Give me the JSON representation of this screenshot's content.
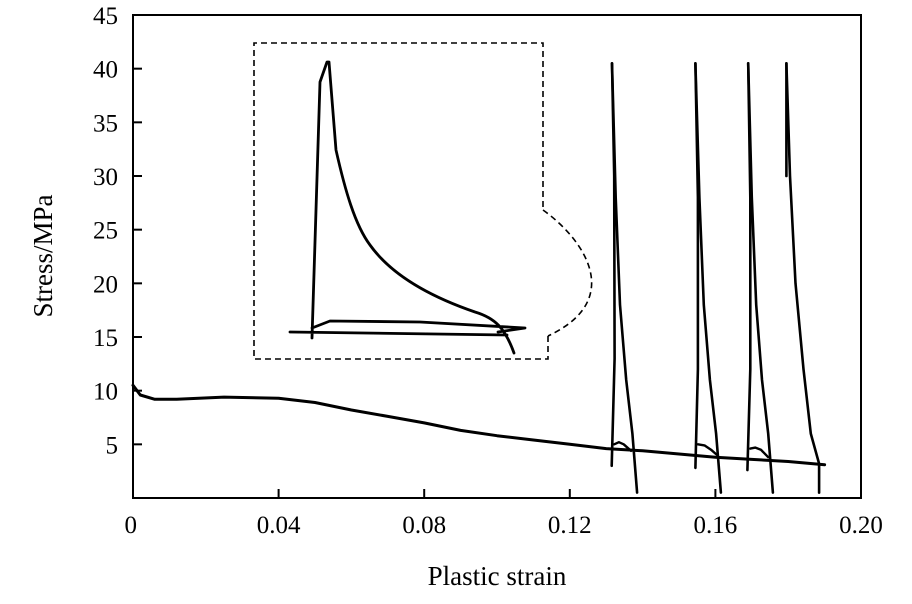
{
  "chart_data": {
    "type": "line",
    "title": "",
    "xlabel": "Plastic strain",
    "ylabel": "Stress/MPa",
    "xlim": [
      0,
      0.2
    ],
    "ylim": [
      0,
      45
    ],
    "grid": false,
    "legend": "none",
    "x_ticks": [
      {
        "value": 0,
        "label": "0"
      },
      {
        "value": 0.04,
        "label": "0.04"
      },
      {
        "value": 0.08,
        "label": "0.08"
      },
      {
        "value": 0.12,
        "label": "0.12"
      },
      {
        "value": 0.16,
        "label": "0.16"
      },
      {
        "value": 0.2,
        "label": "0.20"
      }
    ],
    "y_ticks": [
      {
        "value": 5,
        "label": "5"
      },
      {
        "value": 10,
        "label": "10"
      },
      {
        "value": 15,
        "label": "15"
      },
      {
        "value": 20,
        "label": "20"
      },
      {
        "value": 25,
        "label": "25"
      },
      {
        "value": 30,
        "label": "30"
      },
      {
        "value": 35,
        "label": "35"
      },
      {
        "value": 40,
        "label": "40"
      },
      {
        "value": 45,
        "label": "45"
      }
    ],
    "main_curve": {
      "x": [
        0,
        0.002,
        0.006,
        0.012,
        0.025,
        0.04,
        0.05,
        0.06,
        0.07,
        0.08,
        0.09,
        0.1,
        0.11,
        0.12,
        0.13,
        0.14,
        0.15,
        0.16,
        0.17,
        0.18,
        0.19
      ],
      "y": [
        10.5,
        9.6,
        9.2,
        9.2,
        9.4,
        9.3,
        8.9,
        8.2,
        7.6,
        7.0,
        6.3,
        5.8,
        5.4,
        5.0,
        4.6,
        4.4,
        4.1,
        3.8,
        3.6,
        3.4,
        3.1
      ]
    },
    "unload_cycles": [
      {
        "loading": {
          "x": [
            0.1315,
            0.1323,
            0.1322,
            0.1316
          ],
          "y": [
            3.0,
            13.0,
            30.0,
            40.5
          ]
        },
        "unloading": {
          "x": [
            0.1316,
            0.1326,
            0.1338,
            0.1355,
            0.1372,
            0.1385
          ],
          "y": [
            40.5,
            28.0,
            18.0,
            11.0,
            6.0,
            0.5
          ]
        },
        "loop": {
          "x": [
            0.1322,
            0.1335,
            0.1348,
            0.1368
          ],
          "y": [
            5.0,
            5.2,
            5.0,
            4.4
          ]
        }
      },
      {
        "loading": {
          "x": [
            0.1545,
            0.1552,
            0.1552,
            0.1545
          ],
          "y": [
            2.8,
            12.0,
            28.0,
            40.5
          ]
        },
        "unloading": {
          "x": [
            0.1545,
            0.1556,
            0.1568,
            0.1585,
            0.1602,
            0.1615
          ],
          "y": [
            40.5,
            28.0,
            18.0,
            11.0,
            6.0,
            0.5
          ]
        },
        "loop": {
          "x": [
            0.1552,
            0.157,
            0.1588,
            0.1605
          ],
          "y": [
            5.0,
            4.9,
            4.5,
            4.0
          ]
        }
      },
      {
        "loading": {
          "x": [
            0.1688,
            0.1696,
            0.1696,
            0.169
          ],
          "y": [
            2.6,
            12.0,
            28.0,
            40.5
          ]
        },
        "unloading": {
          "x": [
            0.169,
            0.17,
            0.1712,
            0.1728,
            0.1745,
            0.1758
          ],
          "y": [
            40.5,
            28.0,
            18.0,
            11.0,
            6.0,
            0.5
          ]
        },
        "loop": {
          "x": [
            0.1696,
            0.171,
            0.1725,
            0.1745
          ],
          "y": [
            4.6,
            4.7,
            4.5,
            3.8
          ]
        }
      },
      {
        "loading": {
          "x": [
            0.1795,
            0.1795
          ],
          "y": [
            30.0,
            40.5
          ]
        },
        "unloading": {
          "x": [
            0.1795,
            0.1805,
            0.182,
            0.1842,
            0.1862,
            0.1885,
            0.1885
          ],
          "y": [
            40.5,
            30.0,
            20.0,
            12.0,
            6.0,
            3.2,
            0.5
          ]
        },
        "loop": {
          "x": [],
          "y": []
        }
      }
    ]
  }
}
